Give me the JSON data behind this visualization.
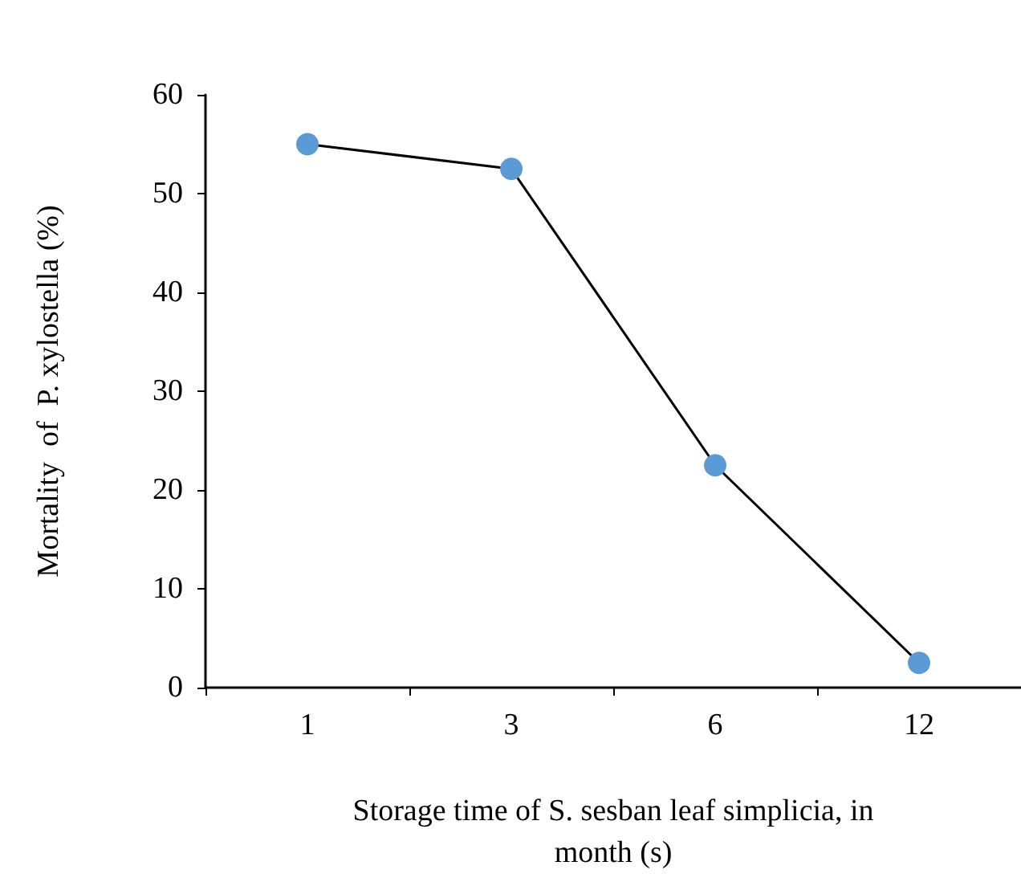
{
  "chart_data": {
    "type": "line",
    "xlabel": "Storage time of S. sesban leaf simplicia, in month (s)",
    "ylabel": "Mortality  of  P. xylostella (%)",
    "categories": [
      "1",
      "3",
      "6",
      "12"
    ],
    "series": [
      {
        "color": "#000000",
        "colors": [
          "#5b9bd5",
          "#5b9bd5",
          "#5b9bd5",
          "#5b9bd5"
        ],
        "values": [
          55,
          52.5,
          22.5,
          2.5
        ]
      }
    ],
    "ylim": [
      0,
      60
    ],
    "yticks": [
      0,
      10,
      20,
      30,
      40,
      50,
      60
    ],
    "grid": false,
    "marker": "circle",
    "line_style": "solid"
  }
}
